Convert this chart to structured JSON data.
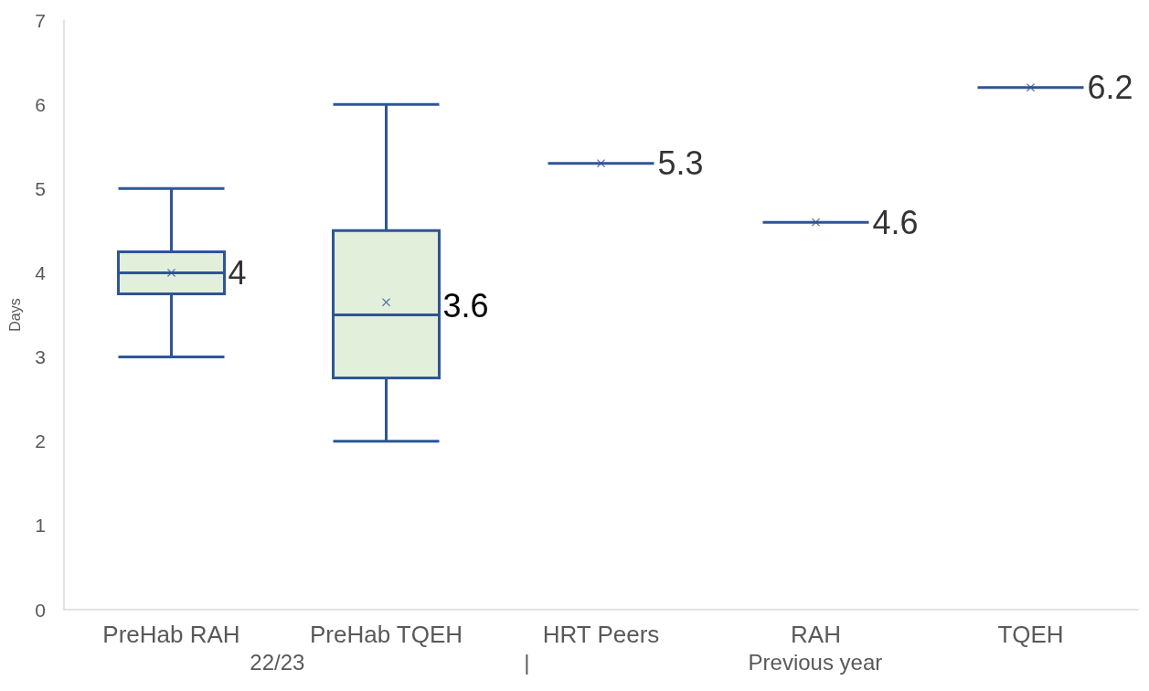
{
  "chart_data": {
    "type": "box",
    "ylabel": "Days",
    "categories": [
      "PreHab RAH",
      "PreHab TQEH",
      "HRT Peers",
      "RAH",
      "TQEH"
    ],
    "series": [
      {
        "color": "#2f5597",
        "boxes": [
          {
            "low": 3,
            "q1": 3.75,
            "median": 4,
            "q3": 4.25,
            "high": 5,
            "mean": 4
          },
          {
            "low": 2,
            "q1": 2.75,
            "median": 3.5,
            "q3": 4.5,
            "high": 6,
            "mean": 3.65
          },
          {
            "low": 5.3,
            "q1": 5.3,
            "median": 5.3,
            "q3": 5.3,
            "high": 5.3,
            "mean": 5.3
          },
          {
            "low": 4.6,
            "q1": 4.6,
            "median": 4.6,
            "q3": 4.6,
            "high": 4.6,
            "mean": 4.6
          },
          {
            "low": 6.2,
            "q1": 6.2,
            "median": 6.2,
            "q3": 6.2,
            "high": 6.2,
            "mean": 6.2
          }
        ]
      }
    ],
    "ylim": [
      0,
      7
    ],
    "yticks": [
      0,
      1,
      2,
      3,
      4,
      5,
      6,
      7
    ],
    "grid": false,
    "annotations": [
      {
        "text": "4",
        "x": "PreHab RAH",
        "y": 4
      },
      "3.6",
      {
        "text": "5.3",
        "x": "HRT Peers",
        "y": 5.3
      },
      {
        "text": "4.6",
        "x": "RAH",
        "y": 4.6
      },
      {
        "text": "6.2",
        "x": "TQEH",
        "y": 6.2
      },
      "22/23",
      "|",
      "Previous year"
    ]
  }
}
